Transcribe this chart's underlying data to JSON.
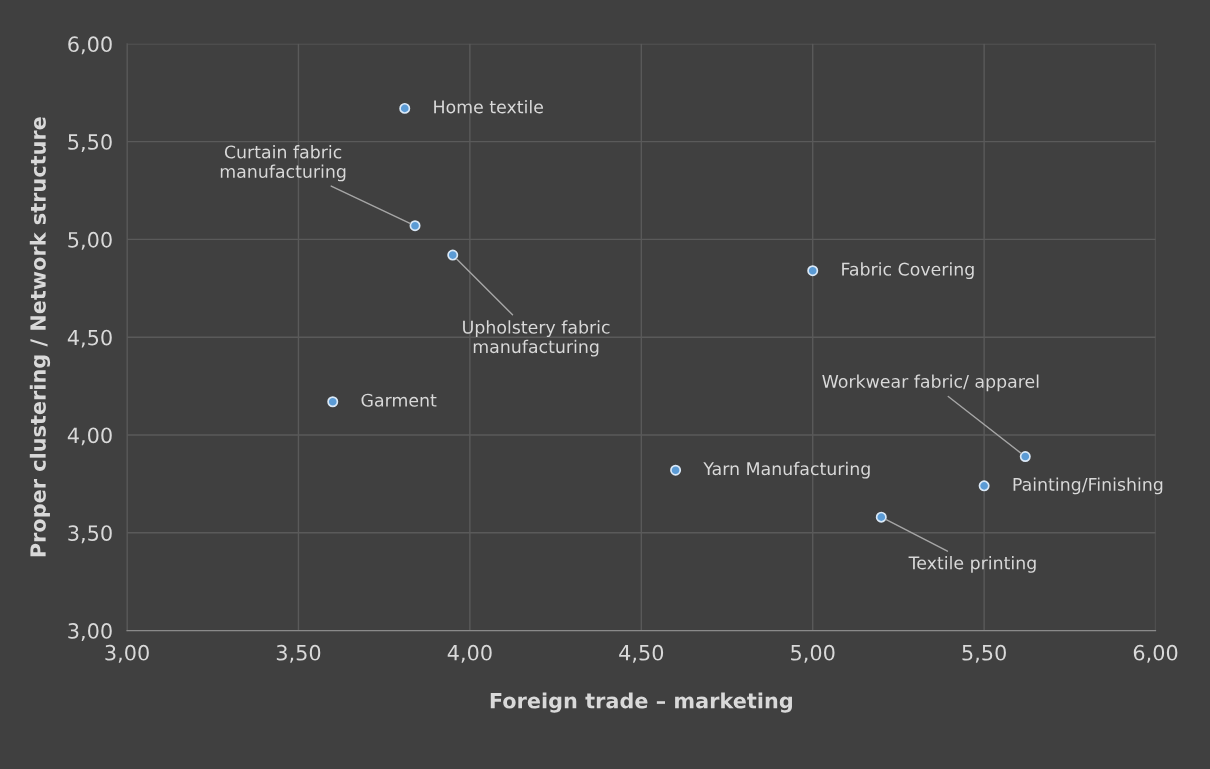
{
  "chart_data": {
    "type": "scatter",
    "xlabel": "Foreign trade – marketing",
    "ylabel": "Proper clustering / Network structure",
    "x": [
      3.81,
      3.84,
      3.95,
      5.0,
      3.6,
      4.6,
      5.62,
      5.5,
      5.2
    ],
    "series": [
      {
        "color": "#5b9bd5",
        "values": [
          5.67,
          5.07,
          4.92,
          4.84,
          4.17,
          3.82,
          3.89,
          3.74,
          3.58
        ]
      }
    ],
    "annotations": [
      {
        "text": "Home textile",
        "x": 3.81,
        "y": 5.67
      },
      {
        "text": "Curtain fabric\nmanufacturing",
        "x": 3.84,
        "y": 5.07
      },
      {
        "text": "Upholstery fabric\nmanufacturing",
        "x": 3.95,
        "y": 4.92
      },
      {
        "text": "Fabric Covering",
        "x": 5.0,
        "y": 4.84
      },
      {
        "text": "Garment",
        "x": 3.6,
        "y": 4.17
      },
      {
        "text": "Yarn Manufacturing",
        "x": 4.6,
        "y": 3.82
      },
      {
        "text": "Workwear fabric/ apparel",
        "x": 5.62,
        "y": 3.89
      },
      {
        "text": "Painting/Finishing",
        "x": 5.5,
        "y": 3.74
      },
      {
        "text": "Textile printing",
        "x": 5.2,
        "y": 3.58
      }
    ],
    "xlim": [
      3,
      6
    ],
    "ylim": [
      3,
      6
    ],
    "xticks": [
      {
        "value": 3,
        "label": "3,00"
      },
      {
        "value": 3.5,
        "label": "3,50"
      },
      {
        "value": 4,
        "label": "4,00"
      },
      {
        "value": 4.5,
        "label": "4,50"
      },
      {
        "value": 5,
        "label": "5,00"
      },
      {
        "value": 5.5,
        "label": "5,50"
      },
      {
        "value": 6,
        "label": "6,00"
      }
    ],
    "yticks": [
      {
        "value": 3,
        "label": "3,00"
      },
      {
        "value": 3.5,
        "label": "3,50"
      },
      {
        "value": 4,
        "label": "4,00"
      },
      {
        "value": 4.5,
        "label": "4,50"
      },
      {
        "value": 5,
        "label": "5,00"
      },
      {
        "value": 5.5,
        "label": "5,50"
      },
      {
        "value": 6,
        "label": "6,00"
      }
    ],
    "grid": true,
    "marker": "circle",
    "legend": false
  }
}
